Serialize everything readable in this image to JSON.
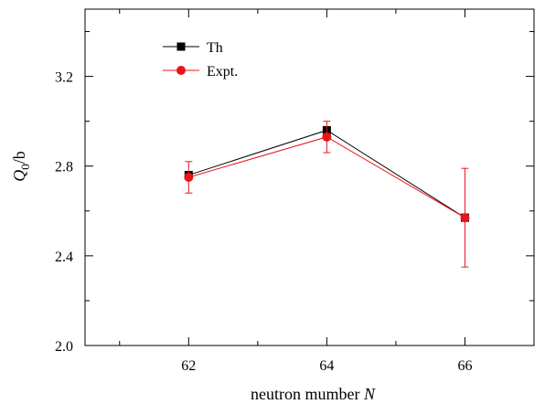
{
  "chart_data": {
    "type": "line",
    "xlabel": "neutron mumber",
    "xlabel_var": "N",
    "ylabel_main": "Q",
    "ylabel_sub": "0",
    "ylabel_unit": "/b",
    "xlim": [
      60.5,
      67
    ],
    "ylim": [
      2.0,
      3.5
    ],
    "x_ticks": [
      62,
      64,
      66
    ],
    "x_minor_ticks": [
      61,
      63,
      65
    ],
    "y_ticks": [
      2.0,
      2.4,
      2.8,
      3.2
    ],
    "y_minor_ticks": [
      2.2,
      2.6,
      3.0,
      3.4
    ],
    "x_tick_labels": [
      "62",
      "64",
      "66"
    ],
    "y_tick_labels": [
      "2.0",
      "2.4",
      "2.8",
      "3.2"
    ],
    "grid": false,
    "legend_position": "top-left",
    "series": [
      {
        "name": "Th",
        "color": "#000000",
        "marker": "square",
        "x": [
          62,
          64,
          66
        ],
        "y": [
          2.76,
          2.96,
          2.57
        ]
      },
      {
        "name": "Expt.",
        "color": "#e8141b",
        "marker": "circle",
        "x": [
          62,
          64,
          66
        ],
        "y": [
          2.75,
          2.93,
          2.57
        ],
        "error": [
          0.07,
          0.07,
          0.22
        ]
      }
    ]
  }
}
